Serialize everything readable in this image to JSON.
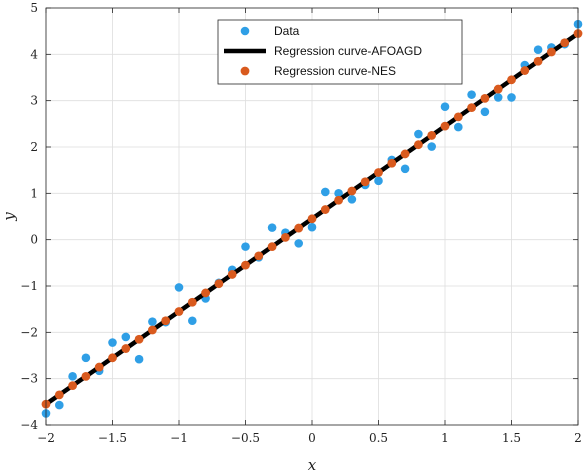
{
  "chart_data": {
    "type": "scatter",
    "title": "",
    "xlabel": "x",
    "ylabel": "y",
    "xlim": [
      -2,
      2
    ],
    "ylim": [
      -4,
      5
    ],
    "xticks": [
      -2,
      -1.5,
      -1,
      -0.5,
      0,
      0.5,
      1,
      1.5,
      2
    ],
    "yticks": [
      -4,
      -3,
      -2,
      -1,
      0,
      1,
      2,
      3,
      4,
      5
    ],
    "xtick_labels": [
      "−2",
      "−1.5",
      "−1",
      "−0.5",
      "0",
      "0.5",
      "1",
      "1.5",
      "2"
    ],
    "ytick_labels": [
      "−4",
      "−3",
      "−2",
      "−1",
      "0",
      "1",
      "2",
      "3",
      "4",
      "5"
    ],
    "grid": true,
    "legend_position": "top-center",
    "colors": {
      "data": "#2f9fe6",
      "afoagd": "#000000",
      "nes": "#d95a1e"
    },
    "series": [
      {
        "name": "Data",
        "kind": "scatter",
        "x": [
          -2.0,
          -1.9,
          -1.8,
          -1.7,
          -1.6,
          -1.5,
          -1.4,
          -1.3,
          -1.2,
          -1.1,
          -1.0,
          -0.9,
          -0.8,
          -0.7,
          -0.6,
          -0.5,
          -0.4,
          -0.3,
          -0.2,
          -0.1,
          0.0,
          0.1,
          0.2,
          0.3,
          0.4,
          0.5,
          0.6,
          0.7,
          0.8,
          0.9,
          1.0,
          1.1,
          1.2,
          1.3,
          1.4,
          1.5,
          1.6,
          1.7,
          1.8,
          1.9,
          2.0
        ],
        "y": [
          -3.75,
          -3.57,
          -2.95,
          -2.55,
          -2.83,
          -2.22,
          -2.1,
          -2.58,
          -1.77,
          -1.78,
          -1.03,
          -1.75,
          -1.27,
          -0.93,
          -0.65,
          -0.15,
          -0.38,
          0.26,
          0.15,
          -0.08,
          0.27,
          1.03,
          1.0,
          0.87,
          1.18,
          1.27,
          1.72,
          1.53,
          2.28,
          2.01,
          2.87,
          2.43,
          3.13,
          2.76,
          3.07,
          3.07,
          3.77,
          4.1,
          4.15,
          4.22,
          4.65
        ]
      },
      {
        "name": "Regression curve-AFOAGD",
        "kind": "line",
        "x": [
          -2.0,
          2.0
        ],
        "y": [
          -3.55,
          4.45
        ]
      },
      {
        "name": "Regression curve-NES",
        "kind": "line-markers",
        "x": [
          -2.0,
          -1.9,
          -1.8,
          -1.7,
          -1.6,
          -1.5,
          -1.4,
          -1.3,
          -1.2,
          -1.1,
          -1.0,
          -0.9,
          -0.8,
          -0.7,
          -0.6,
          -0.5,
          -0.4,
          -0.3,
          -0.2,
          -0.1,
          0.0,
          0.1,
          0.2,
          0.3,
          0.4,
          0.5,
          0.6,
          0.7,
          0.8,
          0.9,
          1.0,
          1.1,
          1.2,
          1.3,
          1.4,
          1.5,
          1.6,
          1.7,
          1.8,
          1.9,
          2.0
        ],
        "y": [
          -3.55,
          -3.35,
          -3.15,
          -2.95,
          -2.75,
          -2.55,
          -2.35,
          -2.15,
          -1.95,
          -1.75,
          -1.55,
          -1.35,
          -1.15,
          -0.95,
          -0.75,
          -0.55,
          -0.35,
          -0.15,
          0.05,
          0.25,
          0.45,
          0.65,
          0.85,
          1.05,
          1.25,
          1.45,
          1.65,
          1.85,
          2.05,
          2.25,
          2.45,
          2.65,
          2.85,
          3.05,
          3.25,
          3.45,
          3.65,
          3.85,
          4.05,
          4.25,
          4.45
        ]
      }
    ]
  }
}
